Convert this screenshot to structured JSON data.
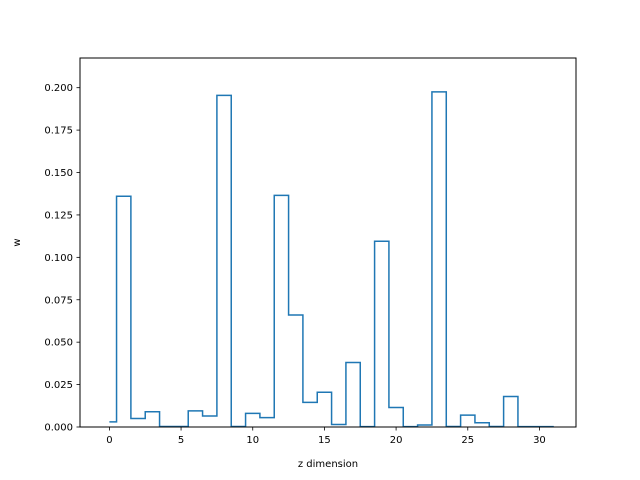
{
  "chart_data": {
    "type": "step",
    "title": "",
    "xlabel": "z dimension",
    "ylabel": "w",
    "xlim": [
      -2.05,
      32.55
    ],
    "ylim": [
      0,
      0.2175
    ],
    "grid": false,
    "legend": "none",
    "line_color": "#1f77b4",
    "x": [
      0,
      1,
      2,
      3,
      4,
      5,
      6,
      7,
      8,
      9,
      10,
      11,
      12,
      13,
      14,
      15,
      16,
      17,
      18,
      19,
      20,
      21,
      22,
      23,
      24,
      25,
      26,
      27,
      28,
      29,
      30,
      31
    ],
    "values": [
      0.003,
      0.136,
      0.005,
      0.009,
      0.0003,
      0.0003,
      0.0095,
      0.0065,
      0.1955,
      0.0003,
      0.008,
      0.0055,
      0.1365,
      0.066,
      0.0145,
      0.0205,
      0.0015,
      0.038,
      0.0002,
      0.1095,
      0.0115,
      0.0002,
      0.0012,
      0.1975,
      0.0003,
      0.007,
      0.0025,
      0.0003,
      0.018,
      0.0002,
      0.0002,
      0.0002
    ],
    "xticks": [
      0,
      5,
      10,
      15,
      20,
      25,
      30
    ],
    "xtick_labels": [
      "0",
      "5",
      "10",
      "15",
      "20",
      "25",
      "30"
    ],
    "yticks": [
      0.0,
      0.025,
      0.05,
      0.075,
      0.1,
      0.125,
      0.15,
      0.175,
      0.2
    ],
    "ytick_labels": [
      "0.000",
      "0.025",
      "0.050",
      "0.075",
      "0.100",
      "0.125",
      "0.150",
      "0.175",
      "0.200"
    ]
  }
}
